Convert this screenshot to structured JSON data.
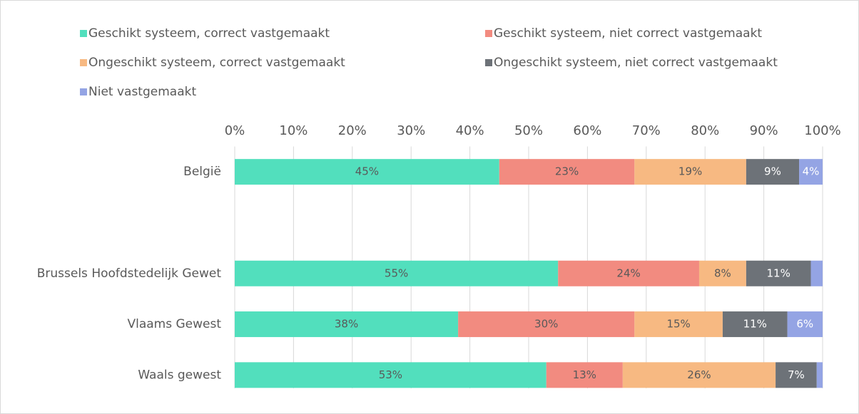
{
  "chart_data": {
    "type": "stacked_barh",
    "categories": [
      "België",
      null,
      "Brussels Hoofdstedelijk Gewet",
      "Vlaams Gewest",
      "Waals gewest"
    ],
    "series": [
      {
        "name": "Geschikt systeem, correct vastgemaakt",
        "color": "#52dfbd",
        "values": [
          45,
          null,
          55,
          38,
          53
        ],
        "value_labels": [
          "45%",
          null,
          "55%",
          "38%",
          "53%"
        ]
      },
      {
        "name": "Geschikt systeem, niet correct vastgemaakt",
        "color": "#f28b80",
        "values": [
          23,
          null,
          24,
          30,
          13
        ],
        "value_labels": [
          "23%",
          null,
          "24%",
          "30%",
          "13%"
        ]
      },
      {
        "name": "Ongeschikt systeem, correct vastgemaakt",
        "color": "#f7b982",
        "values": [
          19,
          null,
          8,
          15,
          26
        ],
        "value_labels": [
          "19%",
          null,
          "8%",
          "15%",
          "26%"
        ]
      },
      {
        "name": "Ongeschikt systeem, niet correct vastgemaakt",
        "color": "#6d7278",
        "values": [
          9,
          null,
          11,
          11,
          7
        ],
        "value_labels": [
          "9%",
          null,
          "11%",
          "11%",
          "7%"
        ]
      },
      {
        "name": "Niet vastgemaakt",
        "color": "#94a4e4",
        "values": [
          4,
          null,
          2,
          6,
          1
        ],
        "value_labels": [
          "4%",
          null,
          null,
          "6%",
          null
        ]
      }
    ],
    "xlim": [
      0,
      100
    ],
    "xticks": [
      {
        "value": 0,
        "label": "0%"
      },
      {
        "value": 10,
        "label": "10%"
      },
      {
        "value": 20,
        "label": "20%"
      },
      {
        "value": 30,
        "label": "30%"
      },
      {
        "value": 40,
        "label": "40%"
      },
      {
        "value": 50,
        "label": "50%"
      },
      {
        "value": 60,
        "label": "60%"
      },
      {
        "value": 70,
        "label": "70%"
      },
      {
        "value": 80,
        "label": "80%"
      },
      {
        "value": 90,
        "label": "90%"
      },
      {
        "value": 100,
        "label": "100%"
      }
    ],
    "grid": true,
    "legend": "top"
  }
}
